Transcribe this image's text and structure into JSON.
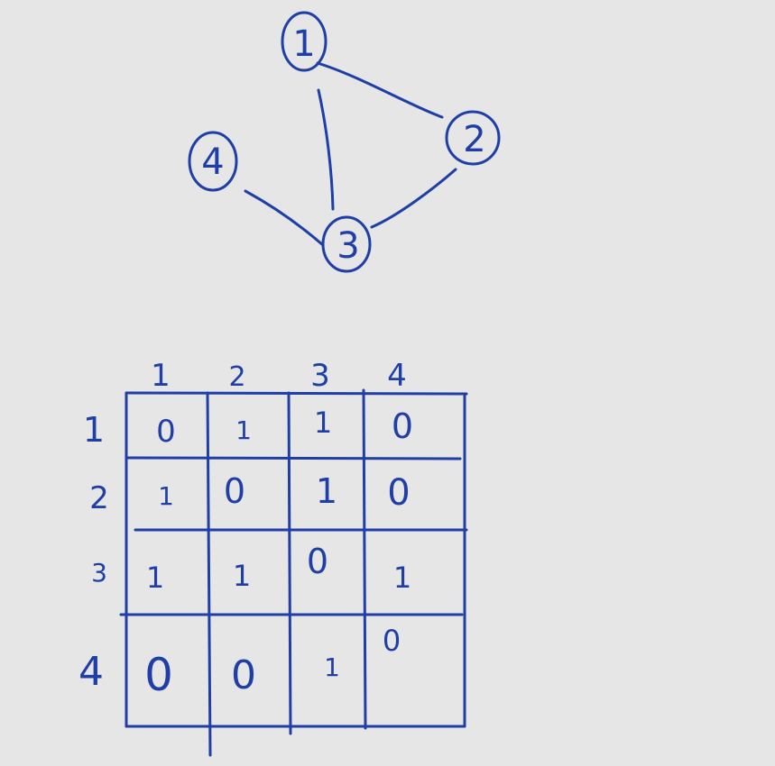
{
  "graph": {
    "nodes": [
      {
        "id": "1",
        "label": "1"
      },
      {
        "id": "2",
        "label": "2"
      },
      {
        "id": "3",
        "label": "3"
      },
      {
        "id": "4",
        "label": "4"
      }
    ],
    "edges": [
      [
        "1",
        "2"
      ],
      [
        "1",
        "3"
      ],
      [
        "2",
        "3"
      ],
      [
        "4",
        "3"
      ]
    ]
  },
  "matrix": {
    "column_headers": [
      "1",
      "2",
      "3",
      "4"
    ],
    "row_headers": [
      "1",
      "2",
      "3",
      "4"
    ],
    "cells": [
      [
        "0",
        "1",
        "1",
        "0"
      ],
      [
        "1",
        "0",
        "1",
        "0"
      ],
      [
        "1",
        "1",
        "0",
        "1"
      ],
      [
        "0",
        "0",
        "1",
        "0"
      ]
    ]
  },
  "ink_color": "#1f3fa6"
}
